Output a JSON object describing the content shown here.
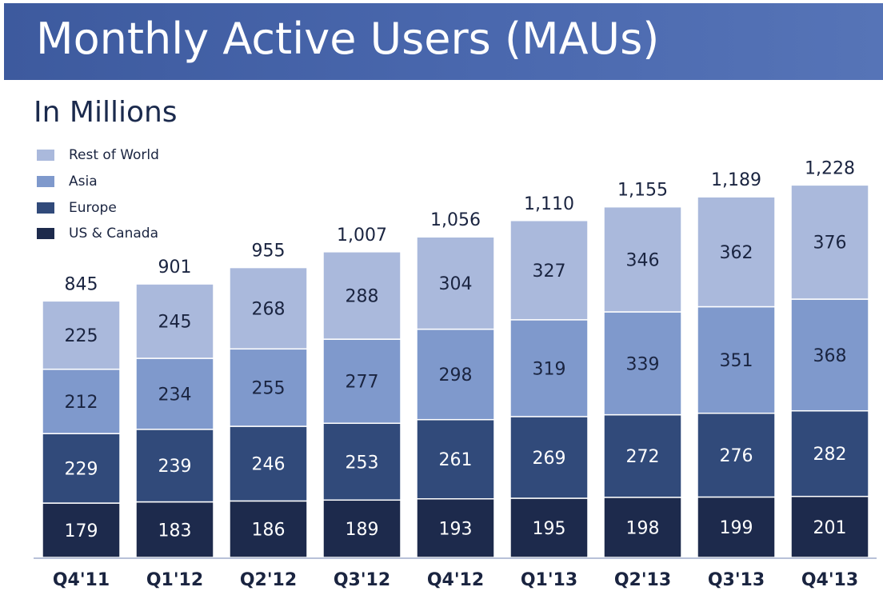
{
  "header": {
    "title": "Monthly Active Users (MAUs)"
  },
  "subtitle": "In Millions",
  "legend": [
    {
      "label": "Rest of World",
      "color": "#aab9dc"
    },
    {
      "label": "Asia",
      "color": "#7f99cc"
    },
    {
      "label": "Europe",
      "color": "#314a7a"
    },
    {
      "label": "US & Canada",
      "color": "#1d2a4c"
    }
  ],
  "colors": {
    "axis": "#b8c1d8",
    "label_light": "#ffffff",
    "label_dark": "#1a2440",
    "total": "#1a2440"
  },
  "chart_data": {
    "type": "bar",
    "stacked": true,
    "categories": [
      "Q4'11",
      "Q1'12",
      "Q2'12",
      "Q3'12",
      "Q4'12",
      "Q1'13",
      "Q2'13",
      "Q3'13",
      "Q4'13"
    ],
    "series": [
      {
        "name": "US & Canada",
        "values": [
          179,
          183,
          186,
          189,
          193,
          195,
          198,
          199,
          201
        ]
      },
      {
        "name": "Europe",
        "values": [
          229,
          239,
          246,
          253,
          261,
          269,
          272,
          276,
          282
        ]
      },
      {
        "name": "Asia",
        "values": [
          212,
          234,
          255,
          277,
          298,
          319,
          339,
          351,
          368
        ]
      },
      {
        "name": "Rest of World",
        "values": [
          225,
          245,
          268,
          288,
          304,
          327,
          346,
          362,
          376
        ]
      }
    ],
    "totals": [
      "845",
      "901",
      "955",
      "1,007",
      "1,056",
      "1,110",
      "1,155",
      "1,189",
      "1,228"
    ],
    "ylim": [
      0,
      1300
    ]
  }
}
